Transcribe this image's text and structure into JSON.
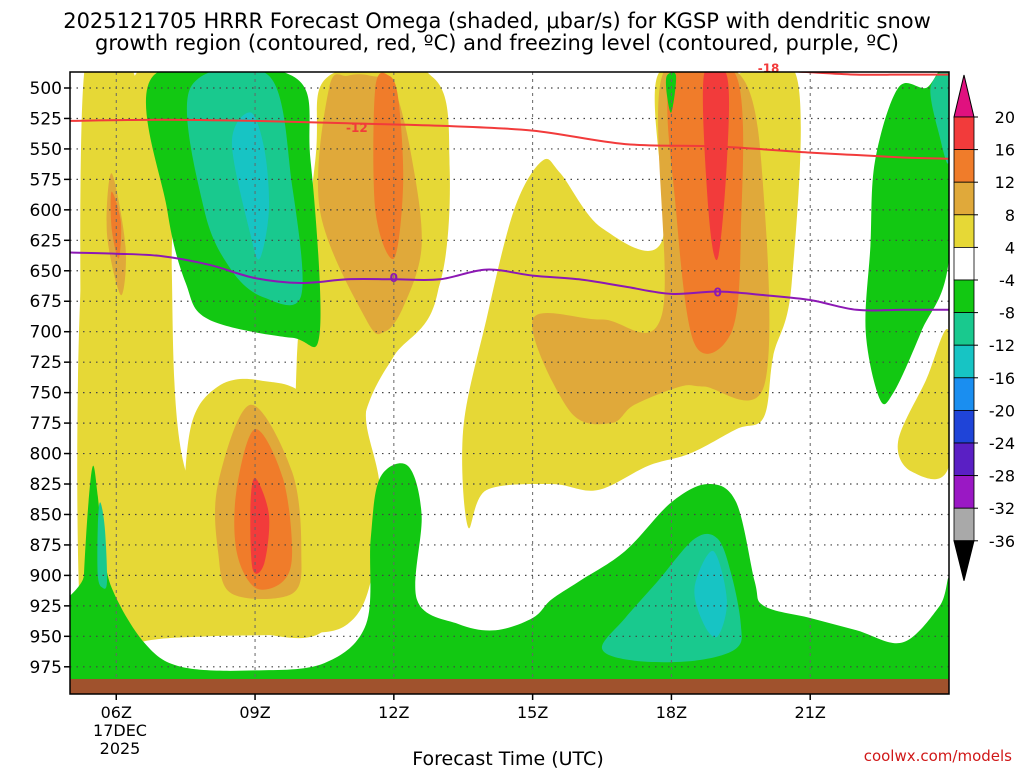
{
  "chart_data": {
    "type": "heatmap",
    "title_line1": "2025121705 HRRR Forecast Omega (shaded, μbar/s) for KGSP with dendritic snow",
    "title_line2": "growth region (contoured, red, ºC) and freezing level (contoured, purple, ºC)",
    "xlabel": "Forecast Time (UTC)",
    "date_labels": [
      "17DEC",
      "2025"
    ],
    "credit": "coolwx.com/models",
    "x_hours": [
      5,
      24
    ],
    "x_ticks": [
      {
        "hour": 6,
        "label": "06Z"
      },
      {
        "hour": 9,
        "label": "09Z"
      },
      {
        "hour": 12,
        "label": "12Z"
      },
      {
        "hour": 15,
        "label": "15Z"
      },
      {
        "hour": 18,
        "label": "18Z"
      },
      {
        "hour": 21,
        "label": "21Z"
      }
    ],
    "y_top_level": 490,
    "y_levels": [
      "500",
      "525",
      "550",
      "575",
      "600",
      "625",
      "650",
      "675",
      "700",
      "725",
      "750",
      "775",
      "800",
      "825",
      "850",
      "875",
      "900",
      "925",
      "950",
      "975"
    ],
    "colorbar": {
      "labels": [
        "20",
        "16",
        "12",
        "8",
        "4",
        "-4",
        "-8",
        "-12",
        "-16",
        "-20",
        "-24",
        "-28",
        "-32",
        "-36"
      ],
      "colors": [
        "#e0117f",
        "#f23b3b",
        "#f07c2a",
        "#e0a93a",
        "#e6d836",
        "#ffffff",
        "#12c812",
        "#19c98e",
        "#17c4c4",
        "#1a8ef0",
        "#1f44d8",
        "#5a1fc4",
        "#9a18c4",
        "#a9a9a9",
        "#000000"
      ]
    },
    "omega_regions": [
      {
        "v": 5,
        "pts": [
          [
            5.3,
            975
          ],
          [
            6.5,
            955
          ],
          [
            8,
            950
          ],
          [
            10,
            948
          ],
          [
            11,
            940
          ],
          [
            11.5,
            905
          ],
          [
            11.7,
            830
          ],
          [
            11.4,
            765
          ],
          [
            12,
            720
          ],
          [
            13,
            660
          ],
          [
            13.2,
            560
          ],
          [
            12.8,
            490
          ],
          [
            11.3,
            490
          ],
          [
            10.2,
            800
          ],
          [
            9.6,
            850
          ],
          [
            7.6,
            825
          ],
          [
            7.2,
            650
          ],
          [
            7.4,
            490
          ],
          [
            6.4,
            490
          ],
          [
            5.3,
            620
          ]
        ]
      },
      {
        "v": 5,
        "pts": [
          [
            5.3,
            975
          ],
          [
            5.2,
            880
          ],
          [
            5.4,
            700
          ],
          [
            6,
            560
          ],
          [
            6.4,
            490
          ],
          [
            5.3,
            490
          ]
        ]
      },
      {
        "v": 5,
        "pts": [
          [
            9.9,
            725
          ],
          [
            10,
            845
          ],
          [
            10.8,
            905
          ],
          [
            11.1,
            830
          ],
          [
            11.4,
            765
          ],
          [
            12,
            720
          ],
          [
            12.9,
            675
          ],
          [
            13.2,
            560
          ],
          [
            12.8,
            490
          ],
          [
            10.6,
            490
          ],
          [
            10.3,
            560
          ]
        ]
      },
      {
        "v": 5,
        "pts": [
          [
            7.6,
            780
          ],
          [
            8.2,
            745
          ],
          [
            9.1,
            740
          ],
          [
            10.2,
            760
          ],
          [
            10.8,
            860
          ],
          [
            10.9,
            905
          ],
          [
            10.5,
            945
          ],
          [
            9.5,
            950
          ],
          [
            8,
            930
          ],
          [
            7.5,
            870
          ]
        ]
      },
      {
        "v": 5,
        "pts": [
          [
            13.6,
            860
          ],
          [
            14,
            830
          ],
          [
            15.4,
            825
          ],
          [
            16.4,
            830
          ],
          [
            17.5,
            810
          ],
          [
            18.4,
            800
          ],
          [
            19.4,
            780
          ],
          [
            20,
            770
          ],
          [
            20.2,
            720
          ],
          [
            20.6,
            660
          ],
          [
            20.7,
            490
          ],
          [
            19.2,
            490
          ],
          [
            17.7,
            490
          ],
          [
            17.8,
            625
          ],
          [
            16.5,
            615
          ],
          [
            15.6,
            570
          ],
          [
            15.2,
            560
          ],
          [
            14.6,
            600
          ],
          [
            14,
            690
          ],
          [
            13.5,
            780
          ]
        ]
      },
      {
        "v": 5,
        "pts": [
          [
            22.9,
            790
          ],
          [
            23.5,
            740
          ],
          [
            24,
            700
          ],
          [
            24,
            810
          ],
          [
            23.2,
            815
          ]
        ]
      },
      {
        "v": 9,
        "pts": [
          [
            10.6,
            500
          ],
          [
            10.4,
            600
          ],
          [
            11.4,
            690
          ],
          [
            11.8,
            700
          ],
          [
            12.2,
            680
          ],
          [
            12.6,
            630
          ],
          [
            12.4,
            560
          ],
          [
            12,
            500
          ],
          [
            11.5,
            490
          ],
          [
            11,
            490
          ]
        ]
      },
      {
        "v": 9,
        "pts": [
          [
            15,
            690
          ],
          [
            15.8,
            765
          ],
          [
            16.7,
            775
          ],
          [
            17.2,
            760
          ],
          [
            18.2,
            745
          ],
          [
            18.7,
            745
          ],
          [
            20,
            745
          ],
          [
            20,
            590
          ],
          [
            19.5,
            490
          ],
          [
            17.8,
            490
          ],
          [
            17.8,
            685
          ],
          [
            16.5,
            690
          ]
        ]
      },
      {
        "v": 9,
        "pts": [
          [
            8.2,
            825
          ],
          [
            8.9,
            760
          ],
          [
            9.8,
            815
          ],
          [
            10,
            880
          ],
          [
            9.8,
            915
          ],
          [
            8.5,
            915
          ],
          [
            8.2,
            880
          ]
        ]
      },
      {
        "v": 9,
        "pts": [
          [
            5.9,
            570
          ],
          [
            6.2,
            630
          ],
          [
            6.1,
            670
          ],
          [
            5.8,
            620
          ]
        ]
      },
      {
        "v": 13,
        "pts": [
          [
            11.6,
            500
          ],
          [
            11.6,
            600
          ],
          [
            12,
            640
          ],
          [
            12.2,
            580
          ],
          [
            12.1,
            510
          ],
          [
            11.9,
            490
          ]
        ]
      },
      {
        "v": 13,
        "pts": [
          [
            18,
            490
          ],
          [
            18.1,
            600
          ],
          [
            18.5,
            710
          ],
          [
            19.3,
            700
          ],
          [
            19.5,
            620
          ],
          [
            19.4,
            490
          ]
        ]
      },
      {
        "v": 13,
        "pts": [
          [
            8.6,
            830
          ],
          [
            9,
            780
          ],
          [
            9.6,
            820
          ],
          [
            9.8,
            880
          ],
          [
            9.6,
            905
          ],
          [
            9,
            910
          ],
          [
            8.6,
            880
          ]
        ]
      },
      {
        "v": 13,
        "pts": [
          [
            5.9,
            585
          ],
          [
            6.1,
            610
          ],
          [
            6.05,
            640
          ],
          [
            5.9,
            615
          ]
        ]
      },
      {
        "v": 17,
        "pts": [
          [
            18.7,
            490
          ],
          [
            18.8,
            600
          ],
          [
            19,
            640
          ],
          [
            19.2,
            560
          ],
          [
            19.2,
            490
          ]
        ]
      },
      {
        "v": 17,
        "pts": [
          [
            8.9,
            845
          ],
          [
            9,
            820
          ],
          [
            9.3,
            850
          ],
          [
            9.2,
            890
          ],
          [
            8.95,
            895
          ]
        ]
      },
      {
        "v": -6,
        "pts": [
          [
            6.8,
            490
          ],
          [
            7.1,
            600
          ],
          [
            7.5,
            660
          ],
          [
            8,
            690
          ],
          [
            9.8,
            705
          ],
          [
            10.4,
            700
          ],
          [
            10.2,
            560
          ],
          [
            9.8,
            490
          ]
        ]
      },
      {
        "v": -6,
        "pts": [
          [
            5.3,
            900
          ],
          [
            5.4,
            840
          ],
          [
            5.5,
            810
          ],
          [
            5.6,
            835
          ],
          [
            5.7,
            870
          ],
          [
            5.9,
            910
          ],
          [
            6.6,
            955
          ],
          [
            7.4,
            975
          ],
          [
            9,
            978
          ],
          [
            10.5,
            972
          ],
          [
            11.4,
            940
          ],
          [
            11.5,
            870
          ],
          [
            11.7,
            820
          ],
          [
            12.3,
            810
          ],
          [
            12.6,
            850
          ],
          [
            12.5,
            920
          ],
          [
            13.4,
            940
          ],
          [
            14.2,
            945
          ],
          [
            15,
            935
          ],
          [
            15.4,
            920
          ],
          [
            16,
            905
          ],
          [
            17,
            880
          ],
          [
            18,
            840
          ],
          [
            18.8,
            825
          ],
          [
            19.4,
            840
          ],
          [
            19.8,
            905
          ],
          [
            20,
            925
          ],
          [
            21,
            935
          ],
          [
            22,
            945
          ],
          [
            23,
            955
          ],
          [
            23.8,
            925
          ],
          [
            24,
            905
          ],
          [
            24,
            990
          ],
          [
            5.2,
            990
          ]
        ]
      },
      {
        "v": -6,
        "pts": [
          [
            22.2,
            700
          ],
          [
            22.3,
            630
          ],
          [
            22.4,
            560
          ],
          [
            22.9,
            500
          ],
          [
            23.5,
            500
          ],
          [
            24,
            490
          ],
          [
            24,
            640
          ],
          [
            23.4,
            700
          ],
          [
            22.8,
            750
          ],
          [
            22.5,
            755
          ]
        ]
      },
      {
        "v": -6,
        "pts": [
          [
            17.9,
            490
          ],
          [
            18.1,
            490
          ],
          [
            18,
            520
          ],
          [
            17.9,
            505
          ]
        ]
      },
      {
        "v": -10,
        "pts": [
          [
            7.6,
            500
          ],
          [
            7.9,
            600
          ],
          [
            8.5,
            650
          ],
          [
            9.2,
            672
          ],
          [
            10,
            670
          ],
          [
            9.8,
            580
          ],
          [
            9.3,
            490
          ]
        ]
      },
      {
        "v": -10,
        "pts": [
          [
            5.6,
            860
          ],
          [
            5.65,
            840
          ],
          [
            5.75,
            860
          ],
          [
            5.8,
            905
          ],
          [
            5.7,
            910
          ],
          [
            5.6,
            900
          ]
        ]
      },
      {
        "v": -10,
        "pts": [
          [
            16.5,
            960
          ],
          [
            17,
            935
          ],
          [
            17.7,
            905
          ],
          [
            18.5,
            870
          ],
          [
            19,
            870
          ],
          [
            19.3,
            900
          ],
          [
            19.5,
            940
          ],
          [
            19.4,
            960
          ],
          [
            18.5,
            970
          ],
          [
            17.2,
            970
          ]
        ]
      },
      {
        "v": -10,
        "pts": [
          [
            23.6,
            500
          ],
          [
            24,
            490
          ],
          [
            24,
            560
          ],
          [
            23.8,
            540
          ]
        ]
      },
      {
        "v": -14,
        "pts": [
          [
            8.5,
            545
          ],
          [
            8.9,
            620
          ],
          [
            9.1,
            640
          ],
          [
            9.3,
            600
          ],
          [
            9.2,
            550
          ],
          [
            8.9,
            520
          ]
        ]
      },
      {
        "v": -14,
        "pts": [
          [
            18.5,
            910
          ],
          [
            18.9,
            880
          ],
          [
            19.2,
            920
          ],
          [
            19,
            950
          ],
          [
            18.7,
            940
          ]
        ]
      }
    ],
    "contours": [
      {
        "name": "dendritic -12C",
        "color": "#f23b3b",
        "label": "-12",
        "label_at": [
          11.2,
          533
        ],
        "label_color": "#f23b3b",
        "pts": [
          [
            5,
            527
          ],
          [
            7,
            526
          ],
          [
            9,
            527
          ],
          [
            11,
            529
          ],
          [
            13,
            531
          ],
          [
            15,
            535
          ],
          [
            17,
            546
          ],
          [
            19,
            548
          ],
          [
            21,
            553
          ],
          [
            22,
            555
          ],
          [
            23,
            557
          ],
          [
            24,
            558
          ]
        ]
      },
      {
        "name": "dendritic -18C",
        "color": "#f23b3b",
        "label": "-18",
        "label_at": [
          20.1,
          484
        ],
        "label_color": "#f23b3b",
        "pts": [
          [
            19.2,
            482
          ],
          [
            20,
            485
          ],
          [
            21,
            487
          ],
          [
            22,
            489
          ],
          [
            23,
            489
          ],
          [
            24,
            489
          ]
        ]
      },
      {
        "name": "freezing level 0C",
        "color": "#8c18b4",
        "label": "0",
        "label_at": [
          12,
          656
        ],
        "label_color": "#8c18b4",
        "pts": [
          [
            5,
            635
          ],
          [
            6,
            636
          ],
          [
            7,
            638
          ],
          [
            8,
            645
          ],
          [
            9,
            656
          ],
          [
            10,
            660
          ],
          [
            11,
            657
          ],
          [
            12,
            657
          ],
          [
            13,
            657
          ],
          [
            14,
            649
          ],
          [
            15,
            654
          ],
          [
            16,
            657
          ],
          [
            17,
            663
          ],
          [
            18,
            669
          ],
          [
            19,
            667
          ],
          [
            20,
            670
          ],
          [
            21,
            674
          ],
          [
            22,
            682
          ],
          [
            23,
            682
          ],
          [
            24,
            682
          ]
        ]
      },
      {
        "name": "freezing level 0C label2",
        "color": "none",
        "label": "0",
        "label_at": [
          19,
          668
        ],
        "label_color": "#8c18b4",
        "pts": []
      }
    ],
    "surface_level": 985
  }
}
